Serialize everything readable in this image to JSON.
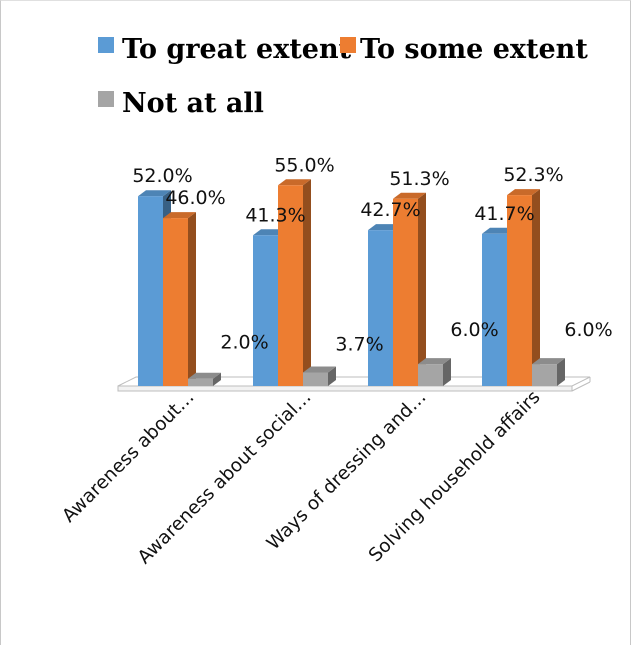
{
  "chart_data": {
    "type": "bar",
    "categories": [
      "Awareness about…",
      "Awareness about social…",
      "Ways of dressing and…",
      "Solving household affairs"
    ],
    "series": [
      {
        "name": "To great extent",
        "color": "#5b9bd5",
        "values": [
          52.0,
          41.3,
          42.7,
          41.7
        ],
        "labels": [
          "52.0%",
          "41.3%",
          "42.7%",
          "41.7%"
        ]
      },
      {
        "name": "To some extent",
        "color": "#ed7d31",
        "values": [
          46.0,
          55.0,
          51.3,
          52.3
        ],
        "labels": [
          "46.0%",
          "55.0%",
          "51.3%",
          "52.3%"
        ]
      },
      {
        "name": "Not at all",
        "color": "#a5a5a5",
        "values": [
          2.0,
          3.7,
          6.0,
          6.0
        ],
        "labels": [
          "2.0%",
          "3.7%",
          "6.0%",
          "6.0%"
        ]
      }
    ],
    "ylim": [
      0,
      60
    ],
    "grid": false,
    "legend_position": "top",
    "style": "3d-clustered-column"
  }
}
